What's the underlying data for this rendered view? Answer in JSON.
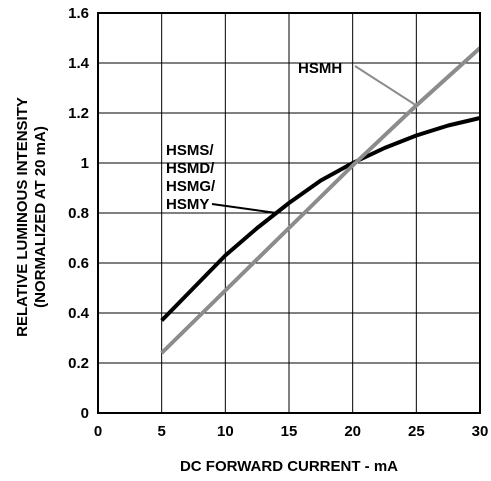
{
  "chart_data": {
    "type": "line",
    "title": "",
    "xlabel": "DC FORWARD CURRENT - mA",
    "ylabel_lines": [
      "RELATIVE LUMINOUS INTENSITY",
      "(NORMALIZED AT 20 mA)"
    ],
    "xlim": [
      0,
      30
    ],
    "ylim": [
      0,
      1.6
    ],
    "x_ticks": [
      0,
      5,
      10,
      15,
      20,
      25,
      30
    ],
    "x_tick_labels": [
      "0",
      "5",
      "10",
      "15",
      "20",
      "25",
      "30"
    ],
    "y_ticks": [
      0,
      0.2,
      0.4,
      0.6,
      0.8,
      1,
      1.2,
      1.4,
      1.6
    ],
    "y_tick_labels": [
      "0",
      "0.2",
      "0.4",
      "0.6",
      "0.8",
      "1",
      "1.2",
      "1.4",
      "1.6"
    ],
    "grid": true,
    "series": [
      {
        "id": "hsms",
        "color": "#000000",
        "points": [
          [
            5,
            0.37
          ],
          [
            7.5,
            0.5
          ],
          [
            10,
            0.63
          ],
          [
            12.5,
            0.74
          ],
          [
            15,
            0.84
          ],
          [
            17.5,
            0.93
          ],
          [
            20,
            1.0
          ],
          [
            22.5,
            1.06
          ],
          [
            25,
            1.11
          ],
          [
            27.5,
            1.15
          ],
          [
            30,
            1.18
          ]
        ]
      },
      {
        "id": "hsmh",
        "color": "#8c8c8c",
        "points": [
          [
            5,
            0.24
          ],
          [
            10,
            0.49
          ],
          [
            15,
            0.74
          ],
          [
            20,
            0.99
          ],
          [
            25,
            1.23
          ],
          [
            30,
            1.46
          ]
        ]
      }
    ],
    "annotations": [
      {
        "series": "hsms",
        "lines": [
          "HSMS/",
          "HSMD/",
          "HSMG/",
          "HSMY"
        ],
        "point": [
          14,
          0.8
        ]
      },
      {
        "series": "hsmh",
        "lines": [
          "HSMH"
        ],
        "point": [
          25,
          1.23
        ]
      }
    ]
  }
}
